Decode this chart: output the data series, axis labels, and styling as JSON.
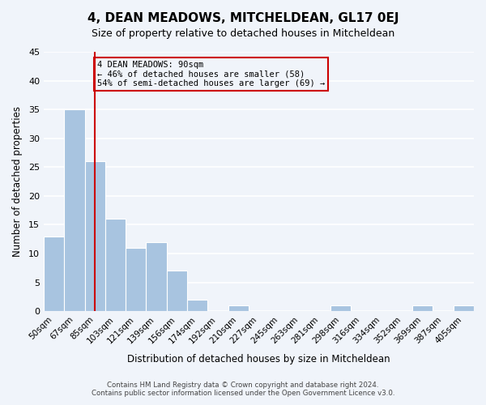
{
  "title": "4, DEAN MEADOWS, MITCHELDEAN, GL17 0EJ",
  "subtitle": "Size of property relative to detached houses in Mitcheldean",
  "xlabel": "Distribution of detached houses by size in Mitcheldean",
  "ylabel": "Number of detached properties",
  "footer_line1": "Contains HM Land Registry data © Crown copyright and database right 2024.",
  "footer_line2": "Contains public sector information licensed under the Open Government Licence v3.0.",
  "bin_labels": [
    "50sqm",
    "67sqm",
    "85sqm",
    "103sqm",
    "121sqm",
    "139sqm",
    "156sqm",
    "174sqm",
    "192sqm",
    "210sqm",
    "227sqm",
    "245sqm",
    "263sqm",
    "281sqm",
    "298sqm",
    "316sqm",
    "334sqm",
    "352sqm",
    "369sqm",
    "387sqm",
    "405sqm"
  ],
  "bar_values": [
    13,
    35,
    26,
    16,
    11,
    12,
    7,
    2,
    0,
    1,
    0,
    0,
    0,
    0,
    1,
    0,
    0,
    0,
    1,
    0,
    1
  ],
  "bar_color": "#a8c4e0",
  "bar_edge_color": "#ffffff",
  "background_color": "#f0f4fa",
  "grid_color": "#ffffff",
  "vline_x": 2,
  "vline_color": "#cc0000",
  "annotation_title": "4 DEAN MEADOWS: 90sqm",
  "annotation_line1": "← 46% of detached houses are smaller (58)",
  "annotation_line2": "54% of semi-detached houses are larger (69) →",
  "annotation_box_color": "#cc0000",
  "ylim": [
    0,
    45
  ],
  "yticks": [
    0,
    5,
    10,
    15,
    20,
    25,
    30,
    35,
    40,
    45
  ]
}
